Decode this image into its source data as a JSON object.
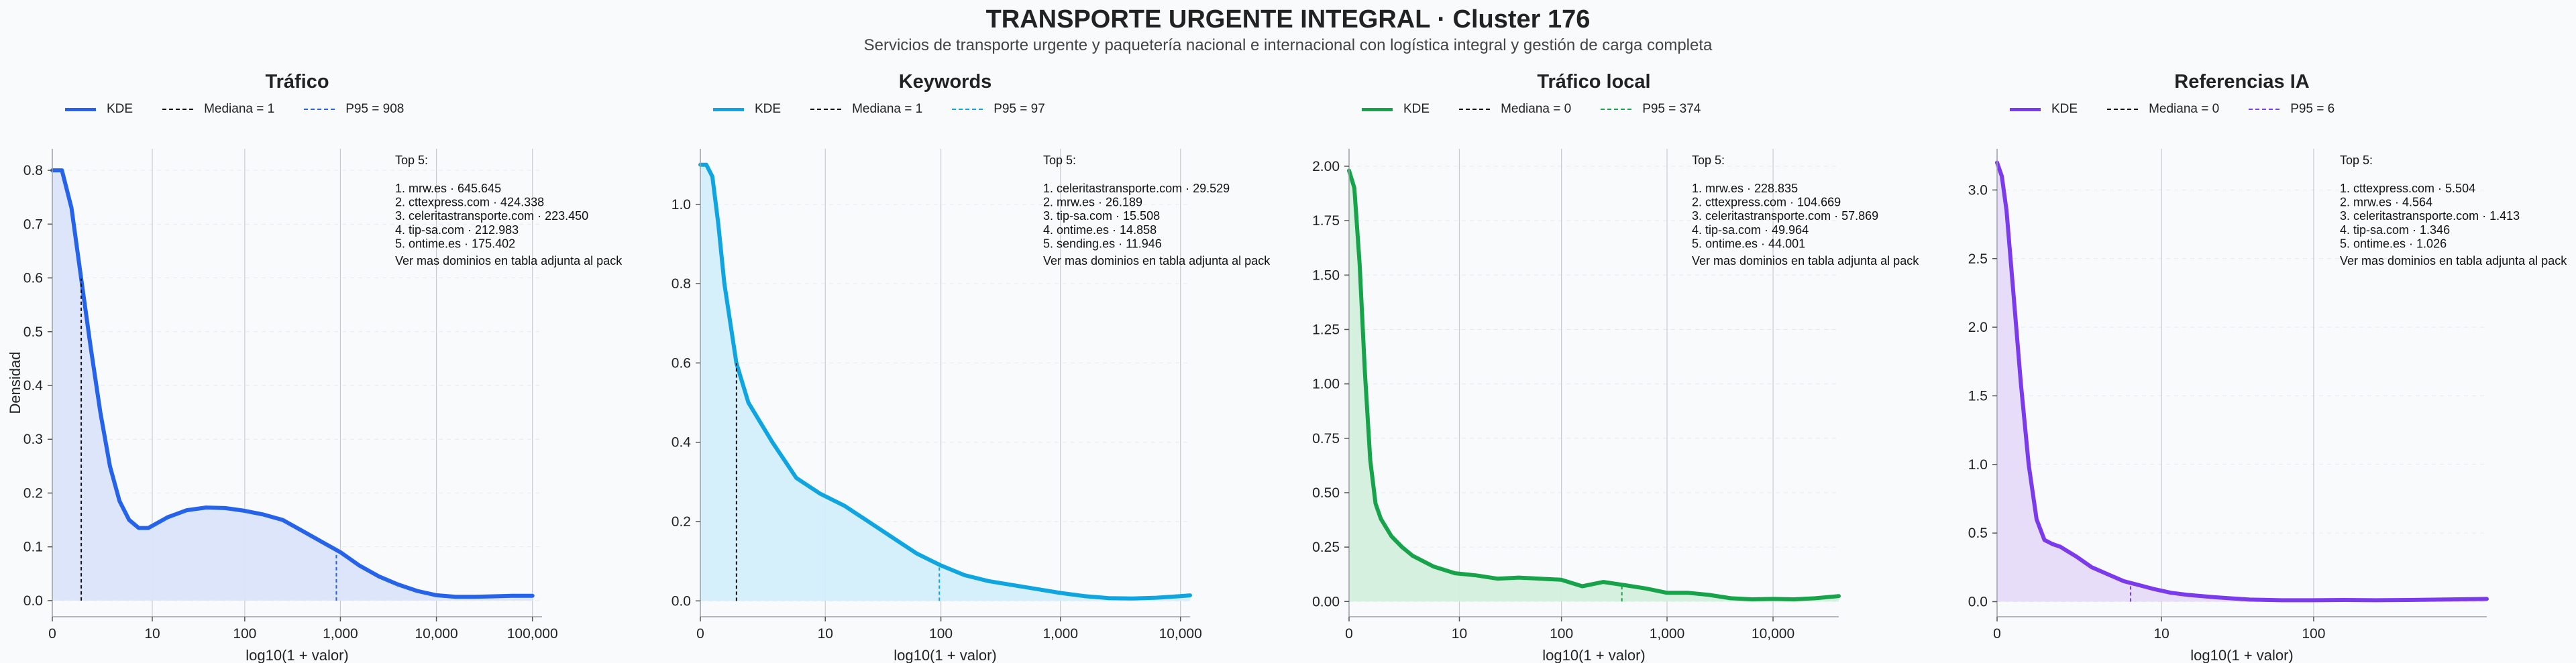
{
  "title": "TRANSPORTE URGENTE INTEGRAL · Cluster 176",
  "subtitle": "Servicios de transporte urgente y paquetería nacional e internacional con logística integral y gestión de carga completa",
  "chart_data": [
    {
      "type": "area",
      "title": "Tráfico",
      "xlabel": "log10(1 + valor)",
      "ylabel": "Densidad",
      "color": "#2563eb",
      "fill": "#dbe4fb",
      "legend": {
        "kde": "KDE",
        "median": "Mediana = 1",
        "p95": "P95 = 908"
      },
      "xlim": [
        0,
        5.1
      ],
      "ylim": [
        -0.03,
        0.84
      ],
      "yticks": [
        0.0,
        0.1,
        0.2,
        0.3,
        0.4,
        0.5,
        0.6,
        0.7,
        0.8
      ],
      "xticks": [
        {
          "x": 0,
          "label": "0"
        },
        {
          "x": 1.041,
          "label": "10"
        },
        {
          "x": 2.004,
          "label": "100"
        },
        {
          "x": 3.0,
          "label": "1,000"
        },
        {
          "x": 4.0,
          "label": "10,000"
        },
        {
          "x": 5.0,
          "label": "100,000"
        }
      ],
      "median_x": 0.301,
      "p95_x": 2.958,
      "kde_x": [
        0.0,
        0.1,
        0.2,
        0.3,
        0.4,
        0.5,
        0.6,
        0.7,
        0.8,
        0.9,
        1.0,
        1.1,
        1.2,
        1.4,
        1.6,
        1.8,
        2.0,
        2.2,
        2.4,
        2.6,
        2.8,
        3.0,
        3.2,
        3.4,
        3.6,
        3.8,
        4.0,
        4.2,
        4.4,
        4.6,
        4.8,
        5.0
      ],
      "kde_y": [
        0.8,
        0.8,
        0.73,
        0.6,
        0.47,
        0.35,
        0.25,
        0.185,
        0.15,
        0.135,
        0.135,
        0.145,
        0.155,
        0.168,
        0.173,
        0.172,
        0.167,
        0.16,
        0.15,
        0.13,
        0.11,
        0.09,
        0.065,
        0.045,
        0.03,
        0.018,
        0.01,
        0.007,
        0.007,
        0.008,
        0.009,
        0.009
      ],
      "top": {
        "heading": "Top 5:",
        "items": [
          "1. mrw.es · 645.645",
          "2. cttexpress.com · 424.338",
          "3. celeritastransporte.com · 223.450",
          "4. tip-sa.com · 212.983",
          "5. ontime.es · 175.402"
        ],
        "note": "Ver mas dominios en tabla adjunta al pack"
      }
    },
    {
      "type": "area",
      "title": "Keywords",
      "xlabel": "log10(1 + valor)",
      "ylabel": "",
      "color": "#0ea5e0",
      "fill": "#d3eefb",
      "legend": {
        "kde": "KDE",
        "median": "Mediana = 1",
        "p95": "P95 = 97"
      },
      "xlim": [
        0,
        4.08
      ],
      "ylim": [
        -0.04,
        1.14
      ],
      "yticks": [
        0.0,
        0.2,
        0.4,
        0.6,
        0.8,
        1.0
      ],
      "xticks": [
        {
          "x": 0,
          "label": "0"
        },
        {
          "x": 1.041,
          "label": "10"
        },
        {
          "x": 2.004,
          "label": "100"
        },
        {
          "x": 3.0,
          "label": "1,000"
        },
        {
          "x": 4.0,
          "label": "10,000"
        }
      ],
      "median_x": 0.301,
      "p95_x": 1.991,
      "kde_x": [
        0.0,
        0.05,
        0.1,
        0.15,
        0.2,
        0.3,
        0.4,
        0.5,
        0.6,
        0.8,
        1.0,
        1.2,
        1.4,
        1.6,
        1.8,
        2.0,
        2.2,
        2.4,
        2.6,
        2.8,
        3.0,
        3.2,
        3.4,
        3.6,
        3.8,
        4.0,
        4.08
      ],
      "kde_y": [
        1.1,
        1.1,
        1.07,
        0.95,
        0.8,
        0.6,
        0.5,
        0.45,
        0.4,
        0.31,
        0.27,
        0.24,
        0.2,
        0.16,
        0.12,
        0.09,
        0.065,
        0.05,
        0.04,
        0.03,
        0.02,
        0.012,
        0.007,
        0.006,
        0.008,
        0.012,
        0.014
      ],
      "top": {
        "heading": "Top 5:",
        "items": [
          "1. celeritastransporte.com · 29.529",
          "2. mrw.es · 26.189",
          "3. tip-sa.com · 15.508",
          "4. ontime.es · 14.858",
          "5. sending.es · 11.946"
        ],
        "note": "Ver mas dominios en tabla adjunta al pack"
      }
    },
    {
      "type": "area",
      "title": "Tráfico local",
      "xlabel": "log10(1 + valor)",
      "ylabel": "",
      "color": "#16a34a",
      "fill": "#d3efdc",
      "legend": {
        "kde": "KDE",
        "median": "Mediana = 0",
        "p95": "P95 = 374"
      },
      "xlim": [
        0,
        4.62
      ],
      "ylim": [
        -0.07,
        2.08
      ],
      "yticks": [
        0.0,
        0.25,
        0.5,
        0.75,
        1.0,
        1.25,
        1.5,
        1.75,
        2.0
      ],
      "xticks": [
        {
          "x": 0,
          "label": "0"
        },
        {
          "x": 1.041,
          "label": "10"
        },
        {
          "x": 2.004,
          "label": "100"
        },
        {
          "x": 3.0,
          "label": "1,000"
        },
        {
          "x": 4.0,
          "label": "10,000"
        }
      ],
      "median_x": 0,
      "p95_x": 2.574,
      "kde_x": [
        0.0,
        0.05,
        0.1,
        0.15,
        0.2,
        0.25,
        0.3,
        0.4,
        0.5,
        0.6,
        0.8,
        1.0,
        1.2,
        1.4,
        1.6,
        1.8,
        2.0,
        2.2,
        2.4,
        2.6,
        2.8,
        3.0,
        3.2,
        3.4,
        3.6,
        3.8,
        4.0,
        4.2,
        4.4,
        4.62
      ],
      "kde_y": [
        1.98,
        1.9,
        1.55,
        1.05,
        0.65,
        0.45,
        0.38,
        0.3,
        0.25,
        0.21,
        0.16,
        0.13,
        0.12,
        0.105,
        0.11,
        0.105,
        0.1,
        0.07,
        0.09,
        0.075,
        0.06,
        0.04,
        0.04,
        0.03,
        0.015,
        0.01,
        0.012,
        0.01,
        0.015,
        0.025
      ],
      "top": {
        "heading": "Top 5:",
        "items": [
          "1. mrw.es · 228.835",
          "2. cttexpress.com · 104.669",
          "3. celeritastransporte.com · 57.869",
          "4. tip-sa.com · 49.964",
          "5. ontime.es · 44.001"
        ],
        "note": "Ver mas dominios en tabla adjunta al pack"
      }
    },
    {
      "type": "area",
      "title": "Referencias IA",
      "xlabel": "log10(1 + valor)",
      "ylabel": "",
      "color": "#7c3aed",
      "fill": "#e7dbf8",
      "legend": {
        "kde": "KDE",
        "median": "Mediana = 0",
        "p95": "P95 = 6"
      },
      "xlim": [
        0,
        3.1
      ],
      "ylim": [
        -0.11,
        3.3
      ],
      "yticks": [
        0.0,
        0.5,
        1.0,
        1.5,
        2.0,
        2.5,
        3.0
      ],
      "xticks": [
        {
          "x": 0,
          "label": "0"
        },
        {
          "x": 1.041,
          "label": "10"
        },
        {
          "x": 2.004,
          "label": "100"
        }
      ],
      "median_x": 0,
      "p95_x": 0.845,
      "kde_x": [
        0.0,
        0.03,
        0.06,
        0.1,
        0.15,
        0.2,
        0.25,
        0.3,
        0.35,
        0.4,
        0.5,
        0.6,
        0.7,
        0.8,
        0.9,
        1.0,
        1.1,
        1.2,
        1.4,
        1.6,
        1.8,
        2.0,
        2.2,
        2.4,
        2.6,
        2.8,
        3.0,
        3.1
      ],
      "kde_y": [
        3.2,
        3.1,
        2.85,
        2.3,
        1.6,
        1.0,
        0.6,
        0.45,
        0.42,
        0.4,
        0.33,
        0.25,
        0.2,
        0.15,
        0.12,
        0.09,
        0.065,
        0.05,
        0.03,
        0.015,
        0.01,
        0.01,
        0.012,
        0.01,
        0.012,
        0.015,
        0.018,
        0.02
      ],
      "top": {
        "heading": "Top 5:",
        "items": [
          "1. cttexpress.com · 5.504",
          "2. mrw.es · 4.564",
          "3. celeritastransporte.com · 1.413",
          "4. tip-sa.com · 1.346",
          "5. ontime.es · 1.026"
        ],
        "note": "Ver mas dominios en tabla adjunta al pack"
      }
    }
  ]
}
